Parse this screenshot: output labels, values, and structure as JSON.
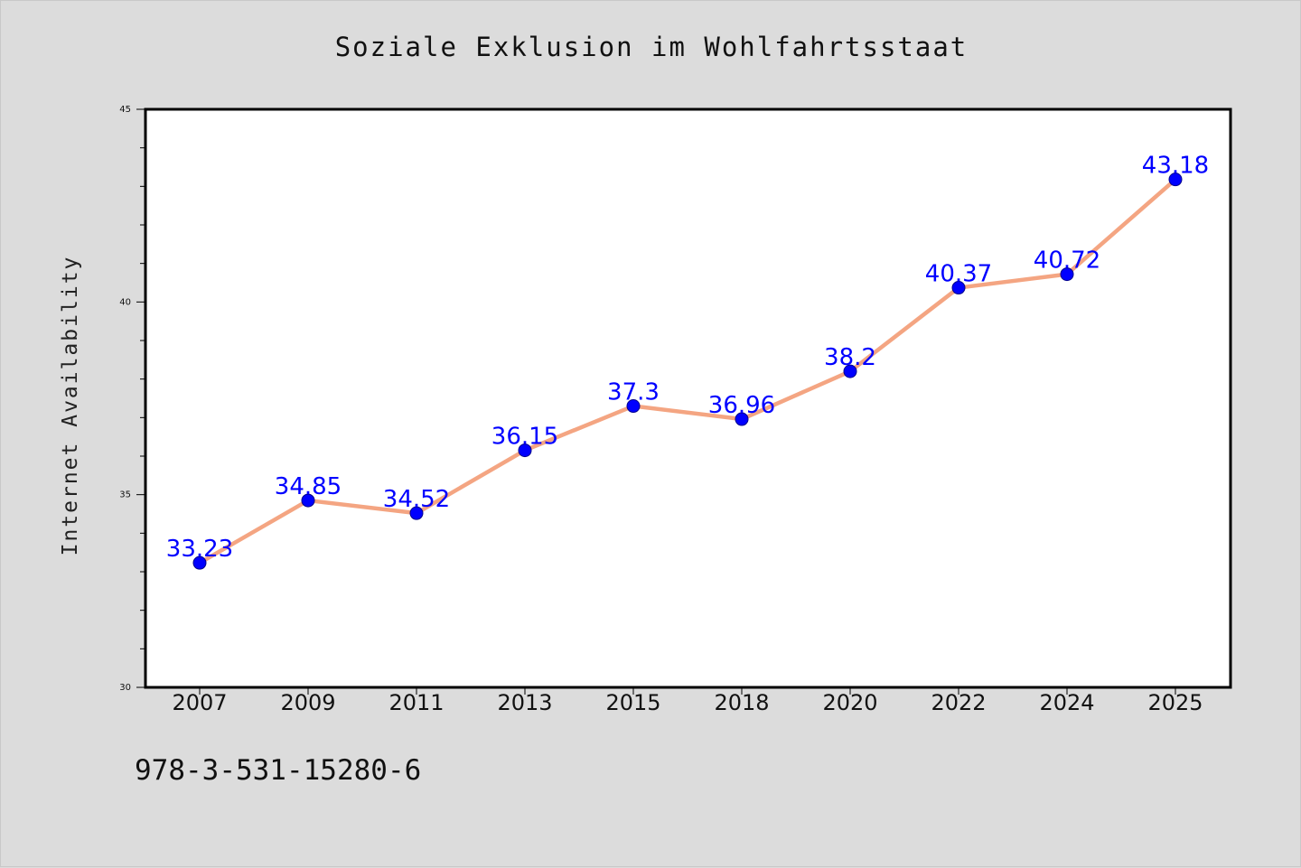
{
  "chart_data": {
    "type": "line",
    "title": "Soziale Exklusion im Wohlfahrtsstaat",
    "xlabel": "",
    "ylabel": "Internet Availability",
    "categories": [
      "2007",
      "2009",
      "2011",
      "2013",
      "2015",
      "2018",
      "2020",
      "2022",
      "2024",
      "2025"
    ],
    "series": [
      {
        "values": [
          33.23,
          34.85,
          34.52,
          36.15,
          37.3,
          36.96,
          38.2,
          40.37,
          40.72,
          43.18
        ],
        "labels": [
          "33.23",
          "34.85",
          "34.52",
          "36.15",
          "37.3",
          "36.96",
          "38.2",
          "40.37",
          "40.72",
          "43.18"
        ],
        "line_color": "#f4a582",
        "marker_color": "#0000ff"
      }
    ],
    "ylim": [
      30,
      45
    ],
    "yticks": [
      "30",
      "35",
      "40",
      "45"
    ],
    "grid": false,
    "data_label_color": "#0000ff",
    "background": "#dcdcdc",
    "plot_background": "#ffffff"
  },
  "footer": {
    "isbn": "978-3-531-15280-6"
  }
}
